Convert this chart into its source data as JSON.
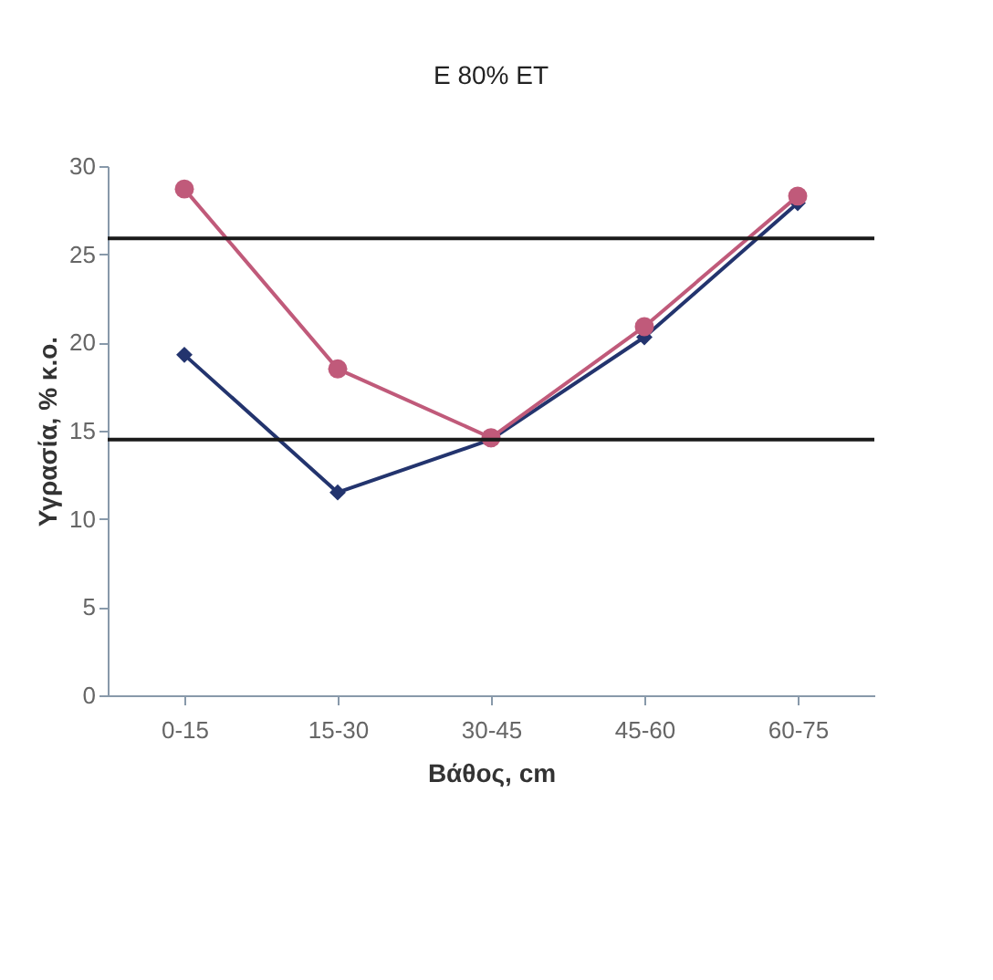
{
  "chart_data": {
    "type": "line",
    "title": "E 80% ET",
    "xlabel": "Βάθος, cm",
    "ylabel": "Υγρασία, % κ.ο.",
    "categories": [
      "0-15",
      "15-30",
      "30-45",
      "45-60",
      "60-75"
    ],
    "series": [
      {
        "color": "#23346e",
        "marker": "diamond",
        "values": [
          19.3,
          11.5,
          14.5,
          20.3,
          27.9
        ]
      },
      {
        "color": "#c05a7a",
        "marker": "circle",
        "values": [
          28.7,
          18.5,
          14.6,
          20.9,
          28.3
        ]
      }
    ],
    "ylim": [
      0,
      30
    ],
    "yticks": [
      0,
      5,
      10,
      15,
      20,
      25,
      30
    ],
    "grid": false,
    "ref_lines": [
      {
        "axis": "y",
        "value": 25.9,
        "color": "#1a1a1a"
      },
      {
        "axis": "y",
        "value": 14.5,
        "color": "#1a1a1a"
      }
    ]
  }
}
